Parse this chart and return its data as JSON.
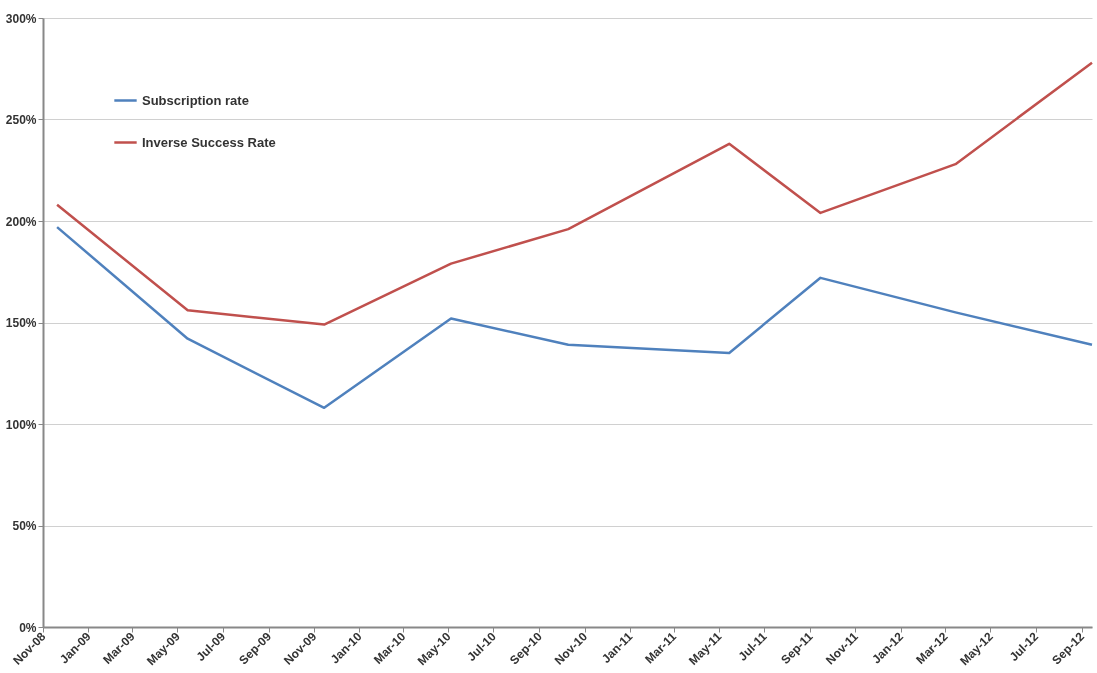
{
  "chart_data": {
    "type": "line",
    "x": [
      "2008-11-20",
      "2009-05-15",
      "2009-11-15",
      "2010-05-05",
      "2010-10-10",
      "2011-05-15",
      "2011-09-15",
      "2012-03-15",
      "2012-09-15"
    ],
    "series": [
      {
        "name": "Subscription rate",
        "color": "#4f81bd",
        "values": [
          197,
          142,
          108,
          152,
          139,
          135,
          172,
          155,
          139
        ]
      },
      {
        "name": "Inverse Success Rate",
        "color": "#c0504d",
        "values": [
          208,
          156,
          149,
          179,
          196,
          238,
          204,
          228,
          278
        ]
      }
    ],
    "xlim": [
      "2008-11-01",
      "2012-09-15"
    ],
    "xticks": [
      {
        "value": "2008-11-01",
        "label": "Nov-08"
      },
      {
        "value": "2009-01-01",
        "label": "Jan-09"
      },
      {
        "value": "2009-03-01",
        "label": "Mar-09"
      },
      {
        "value": "2009-05-01",
        "label": "May-09"
      },
      {
        "value": "2009-07-01",
        "label": "Jul-09"
      },
      {
        "value": "2009-09-01",
        "label": "Sep-09"
      },
      {
        "value": "2009-11-01",
        "label": "Nov-09"
      },
      {
        "value": "2010-01-01",
        "label": "Jan-10"
      },
      {
        "value": "2010-03-01",
        "label": "Mar-10"
      },
      {
        "value": "2010-05-01",
        "label": "May-10"
      },
      {
        "value": "2010-07-01",
        "label": "Jul-10"
      },
      {
        "value": "2010-09-01",
        "label": "Sep-10"
      },
      {
        "value": "2010-11-01",
        "label": "Nov-10"
      },
      {
        "value": "2011-01-01",
        "label": "Jan-11"
      },
      {
        "value": "2011-03-01",
        "label": "Mar-11"
      },
      {
        "value": "2011-05-01",
        "label": "May-11"
      },
      {
        "value": "2011-07-01",
        "label": "Jul-11"
      },
      {
        "value": "2011-09-01",
        "label": "Sep-11"
      },
      {
        "value": "2011-11-01",
        "label": "Nov-11"
      },
      {
        "value": "2012-01-01",
        "label": "Jan-12"
      },
      {
        "value": "2012-03-01",
        "label": "Mar-12"
      },
      {
        "value": "2012-05-01",
        "label": "May-12"
      },
      {
        "value": "2012-07-01",
        "label": "Jul-12"
      },
      {
        "value": "2012-09-01",
        "label": "Sep-12"
      }
    ],
    "ylim": [
      0,
      300
    ],
    "yticks": [
      {
        "value": 0,
        "label": "0%"
      },
      {
        "value": 50,
        "label": "50%"
      },
      {
        "value": 100,
        "label": "100%"
      },
      {
        "value": 150,
        "label": "150%"
      },
      {
        "value": 200,
        "label": "200%"
      },
      {
        "value": 250,
        "label": "250%"
      },
      {
        "value": 300,
        "label": "300%"
      }
    ],
    "grid": "y",
    "legend": "top left",
    "marker": "none",
    "line_style": "solid"
  }
}
